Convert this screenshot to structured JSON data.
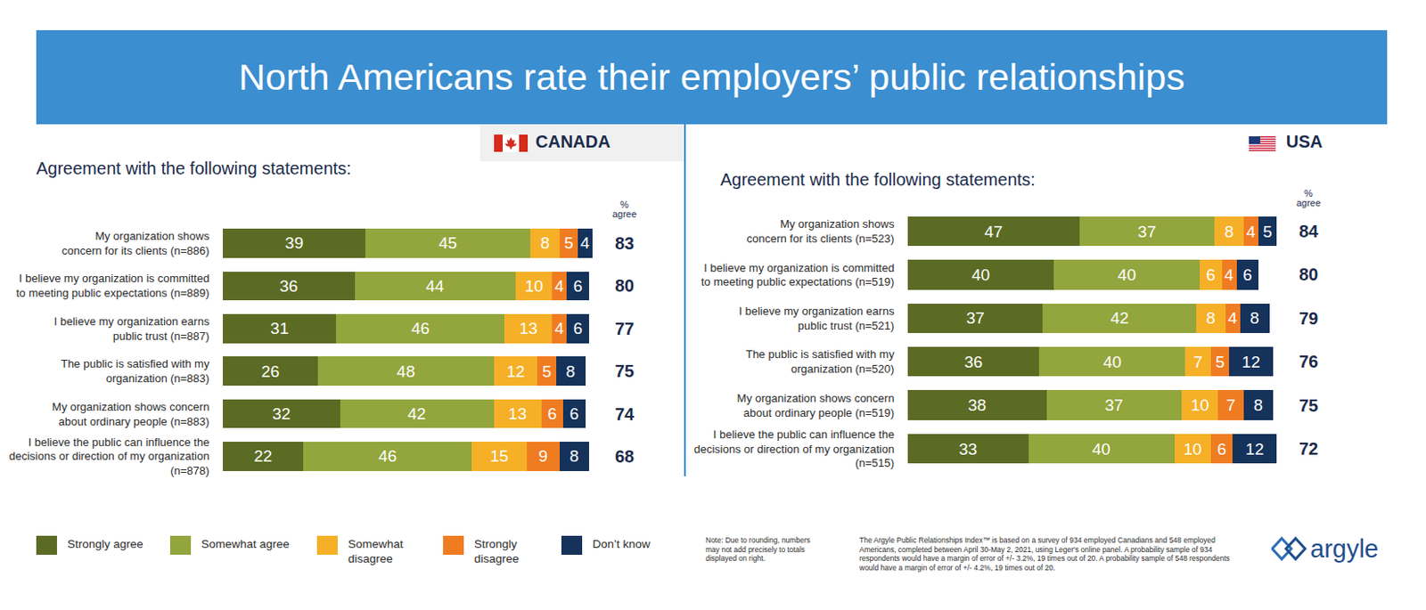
{
  "title": "North Americans rate their employers’ public relationships",
  "chart_data": [
    {
      "type": "bar",
      "title": "CANADA",
      "subtitle": "Agreement with the following statements:",
      "orientation": "horizontal",
      "stacked": true,
      "data_labels": true,
      "tick_labels": "y",
      "legend": "bottom left",
      "xlim": [
        0,
        101
      ],
      "categories": [
        "My organization shows\nconcern for its clients (n=886)",
        "I believe my organization is committed\nto meeting public expectations (n=889)",
        "I believe my organization earns\npublic trust (n=887)",
        "The public is satisfied with my\norganization (n=883)",
        "My organization shows concern\nabout ordinary people (n=883)",
        "I believe the public can influence the\ndecisions or direction of my organization\n(n=878)"
      ],
      "series": [
        {
          "name": "Strongly agree",
          "color": "#5b6b24",
          "values": [
            39,
            36,
            31,
            26,
            32,
            22
          ]
        },
        {
          "name": "Somewhat agree",
          "color": "#93a53d",
          "values": [
            45,
            44,
            46,
            48,
            42,
            46
          ]
        },
        {
          "name": "Somewhat disagree",
          "color": "#f5b027",
          "values": [
            8,
            10,
            13,
            12,
            13,
            15
          ]
        },
        {
          "name": "Strongly disagree",
          "color": "#f07c22",
          "values": [
            5,
            4,
            4,
            5,
            6,
            9
          ]
        },
        {
          "name": "Don’t know",
          "color": "#14325a",
          "values": [
            4,
            6,
            6,
            8,
            6,
            8
          ]
        }
      ],
      "totals_label": "% agree",
      "totals": [
        83,
        80,
        77,
        75,
        74,
        68
      ]
    },
    {
      "type": "bar",
      "title": "USA",
      "subtitle": "Agreement with the following statements:",
      "orientation": "horizontal",
      "stacked": true,
      "data_labels": true,
      "tick_labels": "y",
      "xlim": [
        0,
        101
      ],
      "categories": [
        "My organization shows\nconcern for its clients (n=523)",
        "I believe my organization is committed\nto meeting public expectations (n=519)",
        "I believe my organization earns\npublic trust (n=521)",
        "The public is satisfied with my\norganization (n=520)",
        "My organization shows concern\nabout ordinary people (n=519)",
        "I believe the public can influence the\ndecisions or direction of my organization\n(n=515)"
      ],
      "series": [
        {
          "name": "Strongly agree",
          "color": "#5b6b24",
          "values": [
            47,
            40,
            37,
            36,
            38,
            33
          ]
        },
        {
          "name": "Somewhat agree",
          "color": "#93a53d",
          "values": [
            37,
            40,
            42,
            40,
            37,
            40
          ]
        },
        {
          "name": "Somewhat disagree",
          "color": "#f5b027",
          "values": [
            8,
            6,
            8,
            7,
            10,
            10
          ]
        },
        {
          "name": "Strongly disagree",
          "color": "#f07c22",
          "values": [
            4,
            4,
            4,
            5,
            7,
            6
          ]
        },
        {
          "name": "Don’t know",
          "color": "#14325a",
          "values": [
            5,
            6,
            8,
            12,
            8,
            12
          ]
        }
      ],
      "totals_label": "% agree",
      "totals": [
        84,
        80,
        79,
        76,
        75,
        72
      ]
    }
  ],
  "note": "Note: Due to rounding, numbers may not add precisely to totals displayed on right.",
  "source_note": "The Argyle Public Relationships Index™ is based on a survey of 934 employed Canadians and 548 employed Americans, completed between April 30-May 2, 2021, using Leger's online panel. A probability sample of 934 respondents would have a margin of error of +/- 3.2%, 19 times out of 20. A probability sample of 548 respondents would have a margin of error of +/- 4.2%, 19 times out of 20.",
  "logo": "argyle"
}
